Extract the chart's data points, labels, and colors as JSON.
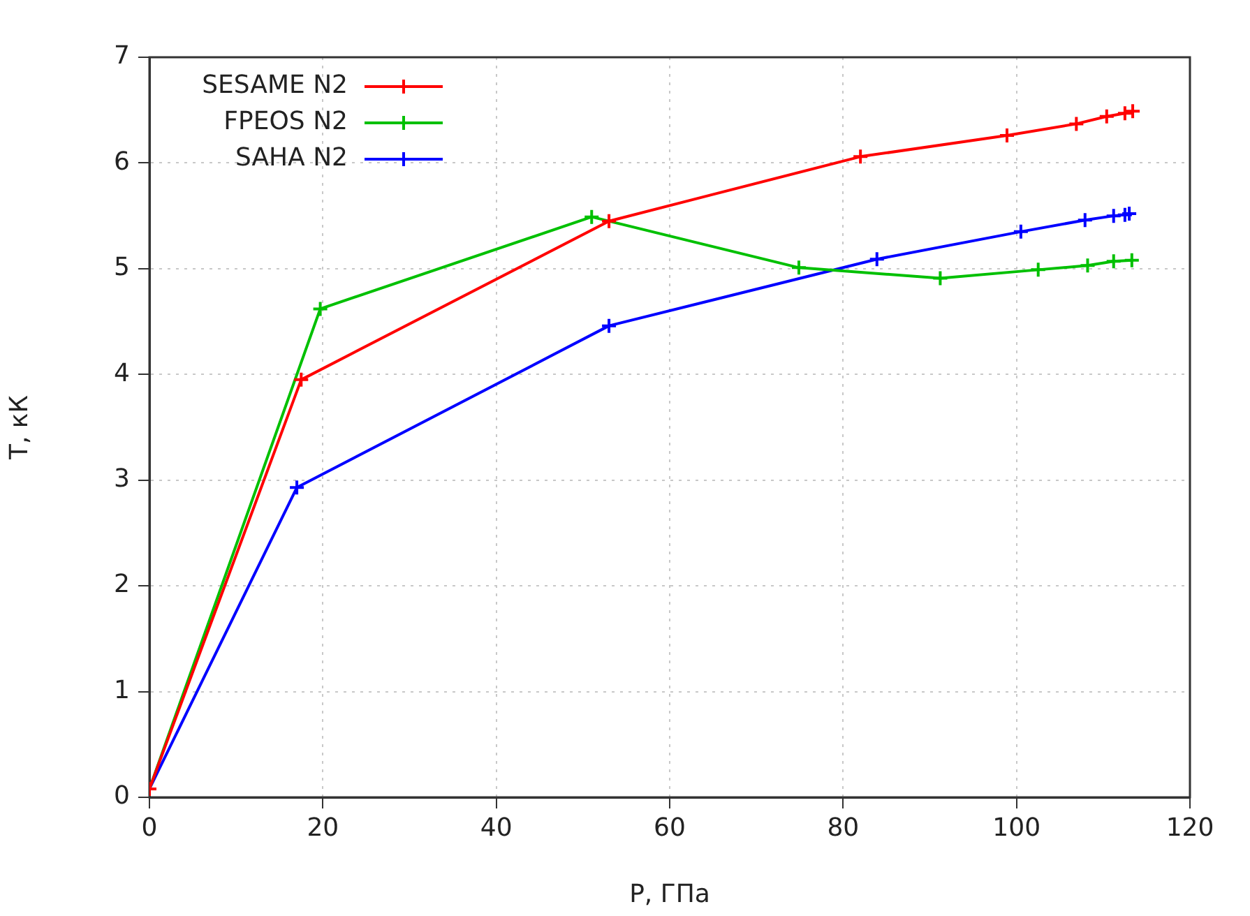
{
  "chart_data": {
    "type": "line",
    "xlabel": "P, ГПа",
    "ylabel": "T, кК",
    "xlim": [
      0,
      120
    ],
    "xticks": [
      0,
      20,
      40,
      60,
      80,
      100,
      120
    ],
    "ylim": [
      0,
      7
    ],
    "yticks": [
      0,
      1,
      2,
      3,
      4,
      5,
      6,
      7
    ],
    "grid": true,
    "legend": "top left",
    "series": [
      {
        "name": "SESAME N2",
        "color": "#ff0000",
        "marker": "cross",
        "x": [
          0,
          17.5,
          53,
          82,
          98.9,
          106.9,
          110.4,
          112.5,
          113.4
        ],
        "values": [
          0.08,
          3.95,
          5.45,
          6.06,
          6.26,
          6.37,
          6.44,
          6.47,
          6.49
        ]
      },
      {
        "name": "FPEOS N2",
        "color": "#00c000",
        "marker": "cross",
        "x": [
          0,
          19.7,
          51,
          74.9,
          91.2,
          102.5,
          108.2,
          111.2,
          113.3
        ],
        "values": [
          0.08,
          4.62,
          5.49,
          5.01,
          4.91,
          4.99,
          5.03,
          5.07,
          5.08
        ]
      },
      {
        "name": "SAHA N2",
        "color": "#0000ff",
        "marker": "cross",
        "x": [
          0,
          17,
          53,
          83.9,
          100.5,
          107.9,
          111.2,
          112.5,
          113
        ],
        "values": [
          0.08,
          2.93,
          4.46,
          5.09,
          5.35,
          5.46,
          5.5,
          5.51,
          5.52
        ]
      }
    ]
  }
}
